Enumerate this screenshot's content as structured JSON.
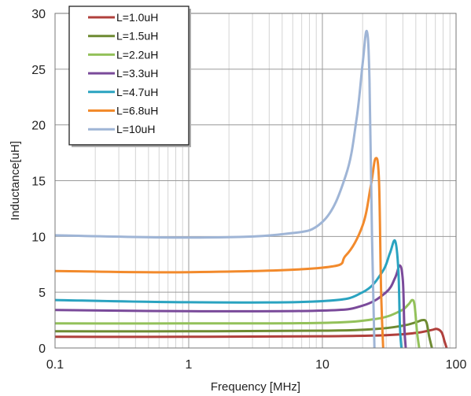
{
  "chart_data": {
    "type": "line",
    "title": "",
    "xlabel": "Frequency [MHz]",
    "ylabel": "Inductance[uH]",
    "x_scale": "log",
    "xlim": [
      0.1,
      100
    ],
    "ylim": [
      0,
      30
    ],
    "x_ticks": [
      0.1,
      1,
      10,
      100
    ],
    "x_tick_labels": [
      "0.1",
      "1",
      "10",
      "100"
    ],
    "y_ticks": [
      0,
      5,
      10,
      15,
      20,
      25,
      30
    ],
    "y_tick_labels": [
      "0",
      "5",
      "10",
      "15",
      "20",
      "25",
      "30"
    ],
    "grid": true,
    "legend_position": "top-left",
    "series": [
      {
        "name": "L=1.0uH",
        "color": "#b0403c",
        "x": [
          0.1,
          1,
          10,
          30,
          50,
          65,
          72,
          78,
          82,
          85
        ],
        "y": [
          1.0,
          1.0,
          1.05,
          1.15,
          1.35,
          1.6,
          1.7,
          1.4,
          0.6,
          0
        ]
      },
      {
        "name": "L=1.5uH",
        "color": "#6e8b32",
        "x": [
          0.1,
          1,
          10,
          25,
          40,
          50,
          56,
          60,
          63,
          66
        ],
        "y": [
          1.5,
          1.5,
          1.55,
          1.7,
          2.0,
          2.3,
          2.5,
          2.3,
          1.0,
          0
        ]
      },
      {
        "name": "L=2.2uH",
        "color": "#93c15a",
        "x": [
          0.1,
          1,
          10,
          25,
          38,
          44,
          47,
          49,
          51,
          53
        ],
        "y": [
          2.2,
          2.2,
          2.25,
          2.6,
          3.3,
          3.9,
          4.3,
          3.8,
          1.5,
          0
        ]
      },
      {
        "name": "L=3.3uH",
        "color": "#7a4a9a",
        "x": [
          0.1,
          1,
          10,
          20,
          30,
          35,
          38,
          40,
          41,
          42
        ],
        "y": [
          3.4,
          3.3,
          3.35,
          3.8,
          5.0,
          6.3,
          7.4,
          6.0,
          2.0,
          0
        ]
      },
      {
        "name": "L=4.7uH",
        "color": "#2aa3c0",
        "x": [
          0.1,
          1,
          10,
          20,
          28,
          32,
          35,
          37,
          38,
          39
        ],
        "y": [
          4.3,
          4.1,
          4.2,
          5.0,
          6.8,
          8.5,
          9.6,
          7.0,
          2.0,
          0
        ]
      },
      {
        "name": "L=6.8uH",
        "color": "#f28a2c",
        "x": [
          0.1,
          1,
          10,
          15,
          20,
          23,
          25,
          26.5,
          27.5,
          28.5
        ],
        "y": [
          6.9,
          6.8,
          7.2,
          8.3,
          11.0,
          14.5,
          17.0,
          15.0,
          5.0,
          0
        ]
      },
      {
        "name": "L=10uH",
        "color": "#9fb5d6",
        "x": [
          0.1,
          1,
          5,
          10,
          15,
          18,
          20,
          21.5,
          22.5,
          23.5,
          24.5
        ],
        "y": [
          10.1,
          9.9,
          10.2,
          11.3,
          15.5,
          20.5,
          25.5,
          28.4,
          24.0,
          10.0,
          0
        ]
      }
    ]
  }
}
